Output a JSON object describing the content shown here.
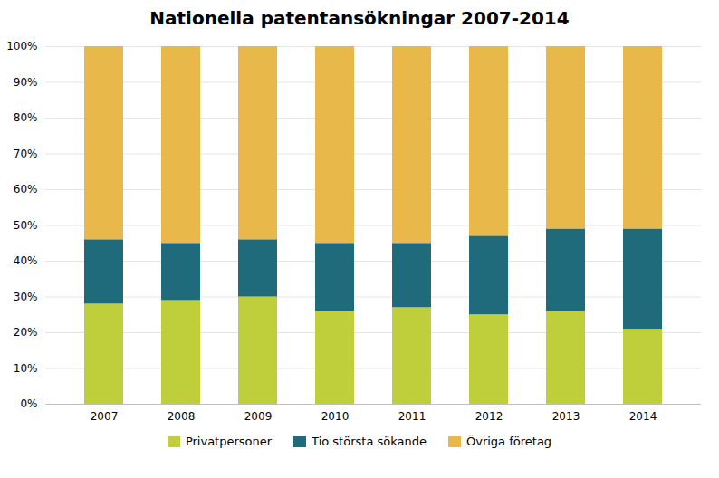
{
  "chart_data": {
    "type": "bar",
    "title": "Nationella patentansökningar 2007-2014",
    "categories": [
      "2007",
      "2008",
      "2009",
      "2010",
      "2011",
      "2012",
      "2013",
      "2014"
    ],
    "series": [
      {
        "name": "Privatpersoner",
        "color": "#bfcf3c",
        "values": [
          28,
          29,
          30,
          26,
          27,
          25,
          26,
          21
        ]
      },
      {
        "name": "Tio största sökande",
        "color": "#1f6b7c",
        "values": [
          18,
          16,
          16,
          19,
          18,
          22,
          23,
          28
        ]
      },
      {
        "name": "Övriga företag",
        "color": "#e8b84b",
        "values": [
          54,
          55,
          54,
          55,
          55,
          53,
          51,
          51
        ]
      }
    ],
    "stacked": true,
    "ylim": [
      0,
      100
    ],
    "yticks": [
      {
        "value": 0,
        "label": "0%"
      },
      {
        "value": 10,
        "label": "10%"
      },
      {
        "value": 20,
        "label": "20%"
      },
      {
        "value": 30,
        "label": "30%"
      },
      {
        "value": 40,
        "label": "40%"
      },
      {
        "value": 50,
        "label": "50%"
      },
      {
        "value": 60,
        "label": "60%"
      },
      {
        "value": 70,
        "label": "70%"
      },
      {
        "value": 80,
        "label": "80%"
      },
      {
        "value": 90,
        "label": "90%"
      },
      {
        "value": 100,
        "label": "100%"
      }
    ],
    "grid": true,
    "legend": "bottom"
  }
}
